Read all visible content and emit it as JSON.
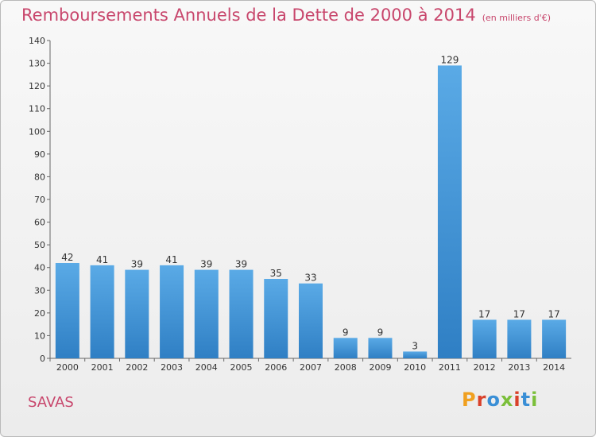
{
  "header": {
    "title": "Remboursements Annuels de la Dette de 2000 à 2014",
    "unit": "(en milliers d'€)"
  },
  "footer": {
    "place": "SAVAS",
    "brand": "Proxiti"
  },
  "colors": {
    "title": "#c8466c",
    "bar": "#4a9fdf",
    "brand_letters": [
      "#f0a020",
      "#d9412b",
      "#3a8fd6",
      "#7bbf3a",
      "#d9412b",
      "#3a8fd6",
      "#7bbf3a"
    ]
  },
  "chart_data": {
    "type": "bar",
    "categories": [
      "2000",
      "2001",
      "2002",
      "2003",
      "2004",
      "2005",
      "2006",
      "2007",
      "2008",
      "2009",
      "2010",
      "2011",
      "2012",
      "2013",
      "2014"
    ],
    "values": [
      42,
      41,
      39,
      41,
      39,
      39,
      35,
      33,
      9,
      9,
      3,
      129,
      17,
      17,
      17
    ],
    "title": "Remboursements Annuels de la Dette de 2000 à 2014",
    "xlabel": "",
    "ylabel": "",
    "ylim": [
      0,
      140
    ],
    "yticks": [
      0,
      10,
      20,
      30,
      40,
      50,
      60,
      70,
      80,
      90,
      100,
      110,
      120,
      130,
      140
    ],
    "grid": false,
    "legend": "none"
  }
}
